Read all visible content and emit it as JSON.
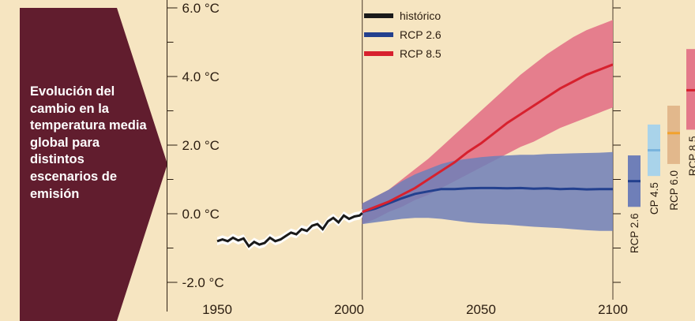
{
  "colors": {
    "background": "#f6e5c1",
    "panel": "#611d2e",
    "historico": "#1a1a1a",
    "rcp26_line": "#23408e",
    "rcp26_band": "#6f7fb8",
    "rcp85_line": "#d7212e",
    "rcp85_band": "#e4788a",
    "rcp45_band": "#a9d3ea",
    "rcp45_line": "#79b4dd",
    "rcp60_band": "#e2b88c",
    "rcp60_line": "#f2a22d"
  },
  "panel": {
    "title": "Evolución del cambio en la temperatura media global para distintos escenarios de emisión"
  },
  "chart_data": {
    "type": "line",
    "title": "",
    "xlabel": "",
    "ylabel": "",
    "xlim": [
      1931,
      2115
    ],
    "ylim": [
      -2.7,
      6.9
    ],
    "x_ticks": [
      "1950",
      "2000",
      "2050",
      "2100"
    ],
    "y_ticks": [
      "6.0 °C",
      "4.0 °C",
      "2.0 °C",
      "0.0 °C",
      "-2.0 °C"
    ],
    "vertical_lines": [
      2005,
      2100
    ],
    "legend": {
      "position": "top-center",
      "entries": [
        "histórico",
        "RCP 2.6",
        "RCP 8.5"
      ]
    },
    "series": [
      {
        "name": "histórico",
        "color": "#1a1a1a",
        "x": [
          1950,
          1952,
          1954,
          1956,
          1958,
          1960,
          1962,
          1964,
          1966,
          1968,
          1970,
          1972,
          1974,
          1976,
          1978,
          1980,
          1982,
          1984,
          1986,
          1988,
          1990,
          1992,
          1994,
          1996,
          1998,
          2000,
          2002,
          2004,
          2005
        ],
        "y": [
          -0.8,
          -0.75,
          -0.8,
          -0.7,
          -0.78,
          -0.72,
          -0.95,
          -0.82,
          -0.9,
          -0.85,
          -0.7,
          -0.8,
          -0.75,
          -0.65,
          -0.55,
          -0.6,
          -0.45,
          -0.5,
          -0.35,
          -0.3,
          -0.45,
          -0.22,
          -0.12,
          -0.25,
          -0.05,
          -0.15,
          -0.08,
          -0.05,
          0.02
        ],
        "band_half_width": 0.12
      },
      {
        "name": "RCP 2.6",
        "color": "#23408e",
        "band_color": "#6f7fb8",
        "x": [
          2005,
          2010,
          2015,
          2020,
          2025,
          2030,
          2035,
          2040,
          2045,
          2050,
          2055,
          2060,
          2065,
          2070,
          2075,
          2080,
          2085,
          2090,
          2095,
          2100
        ],
        "y": [
          0.05,
          0.15,
          0.3,
          0.45,
          0.58,
          0.65,
          0.72,
          0.72,
          0.74,
          0.75,
          0.75,
          0.74,
          0.75,
          0.73,
          0.74,
          0.72,
          0.73,
          0.71,
          0.72,
          0.72
        ],
        "lower": [
          -0.3,
          -0.25,
          -0.2,
          -0.15,
          -0.12,
          -0.12,
          -0.15,
          -0.2,
          -0.25,
          -0.28,
          -0.3,
          -0.32,
          -0.35,
          -0.38,
          -0.4,
          -0.42,
          -0.45,
          -0.48,
          -0.5,
          -0.5
        ],
        "upper": [
          0.3,
          0.5,
          0.7,
          0.95,
          1.15,
          1.3,
          1.45,
          1.55,
          1.6,
          1.65,
          1.68,
          1.7,
          1.72,
          1.72,
          1.74,
          1.75,
          1.76,
          1.77,
          1.78,
          1.8
        ]
      },
      {
        "name": "RCP 8.5",
        "color": "#d7212e",
        "band_color": "#e4788a",
        "x": [
          2005,
          2010,
          2015,
          2020,
          2025,
          2030,
          2035,
          2040,
          2045,
          2050,
          2055,
          2060,
          2065,
          2070,
          2075,
          2080,
          2085,
          2090,
          2095,
          2100
        ],
        "y": [
          0.05,
          0.2,
          0.35,
          0.55,
          0.75,
          1.0,
          1.25,
          1.5,
          1.8,
          2.05,
          2.35,
          2.65,
          2.9,
          3.15,
          3.4,
          3.65,
          3.85,
          4.05,
          4.2,
          4.35
        ],
        "lower": [
          -0.3,
          -0.15,
          0.05,
          0.2,
          0.4,
          0.55,
          0.75,
          0.95,
          1.15,
          1.35,
          1.55,
          1.75,
          1.95,
          2.1,
          2.3,
          2.5,
          2.65,
          2.8,
          2.95,
          3.1
        ],
        "upper": [
          0.3,
          0.5,
          0.7,
          1.0,
          1.3,
          1.6,
          1.95,
          2.3,
          2.65,
          3.0,
          3.35,
          3.7,
          4.05,
          4.35,
          4.65,
          4.9,
          5.15,
          5.35,
          5.5,
          5.65
        ]
      }
    ],
    "ranges_2100": [
      {
        "name": "RCP 2.6",
        "label": "RCP 2.6",
        "mean": 0.95,
        "low": 0.2,
        "high": 1.7,
        "band_color": "#6f7fb8",
        "line_color": "#23408e"
      },
      {
        "name": "RCP 4.5",
        "label": "CP 4.5",
        "mean": 1.85,
        "low": 1.1,
        "high": 2.6,
        "band_color": "#a9d3ea",
        "line_color": "#79b4dd"
      },
      {
        "name": "RCP 6.0",
        "label": "RCP 6.0",
        "mean": 2.35,
        "low": 1.45,
        "high": 3.15,
        "band_color": "#e2b88c",
        "line_color": "#f2a22d"
      },
      {
        "name": "RCP 8.5",
        "label": "RCP 8.5",
        "mean": 3.6,
        "low": 2.45,
        "high": 4.8,
        "band_color": "#e4788a",
        "line_color": "#d7212e"
      }
    ]
  }
}
